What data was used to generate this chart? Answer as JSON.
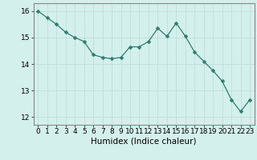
{
  "x": [
    0,
    1,
    2,
    3,
    4,
    5,
    6,
    7,
    8,
    9,
    10,
    11,
    12,
    13,
    14,
    15,
    16,
    17,
    18,
    19,
    20,
    21,
    22,
    23
  ],
  "y": [
    16.0,
    15.75,
    15.5,
    15.2,
    15.0,
    14.85,
    14.35,
    14.25,
    14.2,
    14.25,
    14.65,
    14.65,
    14.85,
    15.35,
    15.05,
    15.55,
    15.05,
    14.45,
    14.1,
    13.75,
    13.35,
    12.65,
    12.2,
    12.65
  ],
  "line_color": "#2e7d70",
  "marker": "D",
  "marker_size": 2.5,
  "bg_color": "#d4f0ec",
  "grid_color": "#c0ddd8",
  "xlabel": "Humidex (Indice chaleur)",
  "xlim": [
    -0.5,
    23.5
  ],
  "ylim": [
    11.7,
    16.3
  ],
  "yticks": [
    12,
    13,
    14,
    15,
    16
  ],
  "xticks": [
    0,
    1,
    2,
    3,
    4,
    5,
    6,
    7,
    8,
    9,
    10,
    11,
    12,
    13,
    14,
    15,
    16,
    17,
    18,
    19,
    20,
    21,
    22,
    23
  ],
  "tick_fontsize": 6.5,
  "xlabel_fontsize": 7.5,
  "axis_color": "#888888",
  "grid_linewidth": 0.6,
  "line_width": 0.9
}
